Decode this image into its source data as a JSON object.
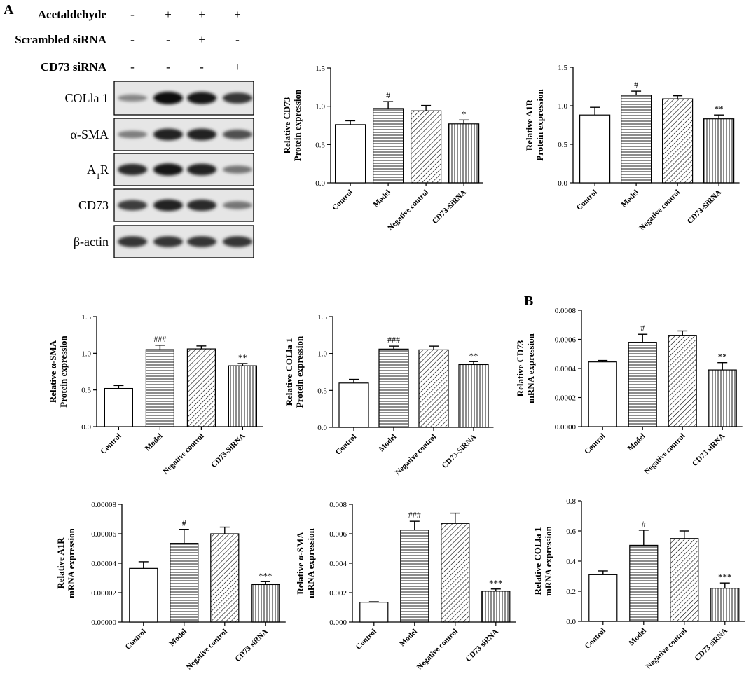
{
  "panel_labels": [
    "A",
    "B"
  ],
  "blot": {
    "treatments": [
      {
        "label": "Acetaldehyde",
        "marks": [
          "-",
          "+",
          "+",
          "+"
        ]
      },
      {
        "label": "Scrambled siRNA",
        "marks": [
          "-",
          "-",
          "+",
          "-"
        ]
      },
      {
        "label": "CD73 siRNA",
        "marks": [
          "-",
          "-",
          "-",
          "+"
        ]
      }
    ],
    "bands": [
      {
        "label_html": "COLla 1",
        "intensity": [
          0.35,
          1.0,
          0.95,
          0.8
        ]
      },
      {
        "label_html": "α-SMA",
        "intensity": [
          0.4,
          0.9,
          0.9,
          0.65
        ]
      },
      {
        "label_html": "A<tspan baseline-shift=\"sub\" font-size=\"12\">1</tspan>R",
        "intensity": [
          0.85,
          0.95,
          0.9,
          0.45
        ]
      },
      {
        "label_html": "CD73",
        "intensity": [
          0.75,
          0.9,
          0.85,
          0.45
        ]
      },
      {
        "label_html": "β-actin",
        "intensity": [
          0.8,
          0.8,
          0.8,
          0.8
        ]
      }
    ]
  },
  "chart_data": [
    {
      "type": "bar",
      "ylabel_lines": [
        "Relative CD73",
        "Protein expression"
      ],
      "categories": [
        "Control",
        "Model",
        "Negative control",
        "CD73-SiRNA"
      ],
      "values": [
        0.76,
        0.97,
        0.94,
        0.77
      ],
      "errors": [
        0.05,
        0.09,
        0.07,
        0.05
      ],
      "annotations": [
        "",
        "#",
        "",
        "*"
      ],
      "ylim": [
        0,
        1.5
      ],
      "yticks": [
        "0.0",
        "0.5",
        "1.0",
        "1.5"
      ]
    },
    {
      "type": "bar",
      "ylabel_lines": [
        "Relative A1R",
        "Protein expression"
      ],
      "categories": [
        "Control",
        "Model",
        "Negative control",
        "CD73-SiRNA"
      ],
      "values": [
        0.88,
        1.14,
        1.09,
        0.83
      ],
      "errors": [
        0.1,
        0.05,
        0.04,
        0.05
      ],
      "annotations": [
        "",
        "#",
        "",
        "**"
      ],
      "ylim": [
        0,
        1.5
      ],
      "yticks": [
        "0.0",
        "0.5",
        "1.0",
        "1.5"
      ]
    },
    {
      "type": "bar",
      "ylabel_lines": [
        "Relative α-SMA",
        "Protein expression"
      ],
      "categories": [
        "Control",
        "Model",
        "Negative control",
        "CD73-SiRNA"
      ],
      "values": [
        0.52,
        1.05,
        1.06,
        0.83
      ],
      "errors": [
        0.04,
        0.06,
        0.04,
        0.03
      ],
      "annotations": [
        "",
        "###",
        "",
        "**"
      ],
      "ylim": [
        0,
        1.5
      ],
      "yticks": [
        "0.0",
        "0.5",
        "1.0",
        "1.5"
      ]
    },
    {
      "type": "bar",
      "ylabel_lines": [
        "Relative COLla 1",
        "Protein expression"
      ],
      "categories": [
        "Control",
        "Model",
        "Negative control",
        "CD73-SiRNA"
      ],
      "values": [
        0.6,
        1.06,
        1.05,
        0.85
      ],
      "errors": [
        0.05,
        0.04,
        0.05,
        0.04
      ],
      "annotations": [
        "",
        "###",
        "",
        "**"
      ],
      "ylim": [
        0,
        1.5
      ],
      "yticks": [
        "0.0",
        "0.5",
        "1.0",
        "1.5"
      ]
    },
    {
      "type": "bar",
      "ylabel_lines": [
        "Relative CD73",
        "mRNA expression"
      ],
      "categories": [
        "Control",
        "Model",
        "Negative control",
        "CD73 siRNA"
      ],
      "values": [
        0.000445,
        0.00058,
        0.000628,
        0.00039
      ],
      "errors": [
        1e-05,
        5.5e-05,
        3e-05,
        5e-05
      ],
      "annotations": [
        "",
        "#",
        "",
        "**"
      ],
      "ylim": [
        0,
        0.0008
      ],
      "yticks": [
        "0.0000",
        "0.0002",
        "0.0004",
        "0.0006",
        "0.0008"
      ]
    },
    {
      "type": "bar",
      "ylabel_lines": [
        "Relative A1R",
        "mRNA expression"
      ],
      "categories": [
        "Control",
        "Model",
        "Negative control",
        "CD73 siRNA"
      ],
      "values": [
        3.65e-05,
        5.35e-05,
        6e-05,
        2.55e-05
      ],
      "errors": [
        4.5e-06,
        9.5e-06,
        4.5e-06,
        2e-06
      ],
      "annotations": [
        "",
        "#",
        "",
        "***"
      ],
      "ylim": [
        0,
        8e-05
      ],
      "yticks": [
        "0.00000",
        "0.00002",
        "0.00004",
        "0.00006",
        "0.00008"
      ]
    },
    {
      "type": "bar",
      "ylabel_lines": [
        "Relative α-SMA",
        "mRNA expression"
      ],
      "categories": [
        "Control",
        "Model",
        "Negative control",
        "CD73 siRNA"
      ],
      "values": [
        0.00135,
        0.00625,
        0.0067,
        0.0021
      ],
      "errors": [
        3e-05,
        0.0006,
        0.0007,
        0.00015
      ],
      "annotations": [
        "",
        "###",
        "",
        "***"
      ],
      "ylim": [
        0,
        0.008
      ],
      "yticks": [
        "0.000",
        "0.002",
        "0.004",
        "0.006",
        "0.008"
      ]
    },
    {
      "type": "bar",
      "ylabel_lines": [
        "Relative COLla 1",
        "mRNA expression"
      ],
      "categories": [
        "Control",
        "Model",
        "Negative control",
        "CD73 siRNA"
      ],
      "values": [
        0.31,
        0.505,
        0.55,
        0.22
      ],
      "errors": [
        0.025,
        0.1,
        0.05,
        0.035
      ],
      "annotations": [
        "",
        "#",
        "",
        "***"
      ],
      "ylim": [
        0,
        0.8
      ],
      "yticks": [
        "0.0",
        "0.2",
        "0.4",
        "0.6",
        "0.8"
      ]
    }
  ]
}
